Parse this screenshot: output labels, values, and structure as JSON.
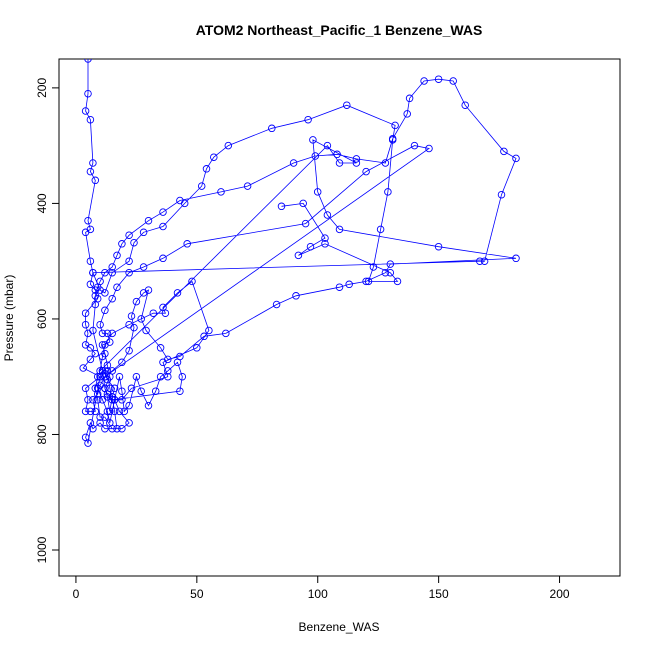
{
  "chart_data": {
    "type": "line",
    "title": "ATOM2 Northeast_Pacific_1 Benzene_WAS",
    "xlabel": "Benzene_WAS",
    "ylabel": "Pressure (mbar)",
    "xlim": [
      -7,
      225
    ],
    "ylim": [
      1045,
      150
    ],
    "y_reversed": true,
    "xticks": [
      0,
      50,
      100,
      150,
      200
    ],
    "yticks": [
      200,
      400,
      600,
      800,
      1000
    ],
    "grid": false,
    "legend": "none",
    "marker": "open-circle",
    "series": [
      {
        "color": "#0000ff",
        "points": [
          [
            5,
            150
          ],
          [
            5,
            210
          ],
          [
            4,
            240
          ],
          [
            6,
            255
          ],
          [
            7,
            330
          ],
          [
            6,
            345
          ],
          [
            8,
            360
          ],
          [
            5,
            430
          ],
          [
            6,
            445
          ],
          [
            4,
            450
          ],
          [
            6,
            500
          ],
          [
            7,
            520
          ],
          [
            6,
            540
          ],
          [
            8,
            550
          ],
          [
            9,
            565
          ],
          [
            4,
            590
          ],
          [
            4,
            610
          ],
          [
            5,
            625
          ],
          [
            4,
            645
          ],
          [
            6,
            650
          ],
          [
            8,
            660
          ],
          [
            6,
            670
          ],
          [
            3,
            685
          ],
          [
            10,
            700
          ],
          [
            4,
            720
          ],
          [
            5,
            740
          ],
          [
            4,
            760
          ],
          [
            6,
            760
          ],
          [
            8,
            760
          ],
          [
            7,
            740
          ],
          [
            9,
            730
          ],
          [
            10,
            715
          ],
          [
            12,
            700
          ],
          [
            13,
            690
          ],
          [
            14,
            720
          ],
          [
            15,
            735
          ],
          [
            16,
            760
          ],
          [
            17,
            790
          ],
          [
            12,
            790
          ],
          [
            10,
            780
          ],
          [
            7,
            790
          ],
          [
            6,
            780
          ],
          [
            4,
            805
          ],
          [
            5,
            815
          ],
          [
            10,
            700
          ],
          [
            9,
            720
          ],
          [
            11,
            740
          ],
          [
            13,
            760
          ],
          [
            14,
            780
          ],
          [
            16,
            740
          ],
          [
            18,
            700
          ],
          [
            19,
            725
          ],
          [
            20,
            760
          ],
          [
            22,
            750
          ],
          [
            25,
            700
          ],
          [
            27,
            725
          ],
          [
            30,
            750
          ],
          [
            33,
            725
          ],
          [
            35,
            700
          ],
          [
            38,
            690
          ],
          [
            42,
            675
          ],
          [
            44,
            700
          ],
          [
            43,
            725
          ],
          [
            15,
            740
          ],
          [
            13,
            730
          ],
          [
            12,
            720
          ],
          [
            14,
            700
          ],
          [
            13,
            680
          ],
          [
            12,
            660
          ],
          [
            11,
            645
          ],
          [
            14,
            640
          ],
          [
            13,
            625
          ],
          [
            11,
            625
          ],
          [
            10,
            610
          ],
          [
            12,
            585
          ],
          [
            15,
            565
          ],
          [
            17,
            545
          ],
          [
            22,
            520
          ],
          [
            28,
            510
          ],
          [
            36,
            495
          ],
          [
            46,
            470
          ],
          [
            95,
            435
          ],
          [
            120,
            345
          ],
          [
            140,
            300
          ],
          [
            146,
            305
          ],
          [
            12,
            700
          ],
          [
            15,
            690
          ],
          [
            19,
            675
          ],
          [
            22,
            655
          ],
          [
            24,
            615
          ],
          [
            23,
            595
          ],
          [
            25,
            570
          ],
          [
            28,
            555
          ],
          [
            30,
            550
          ],
          [
            27,
            600
          ],
          [
            29,
            620
          ],
          [
            35,
            650
          ],
          [
            38,
            670
          ],
          [
            43,
            665
          ],
          [
            53,
            630
          ],
          [
            62,
            625
          ],
          [
            83,
            575
          ],
          [
            91,
            560
          ],
          [
            109,
            545
          ],
          [
            113,
            540
          ],
          [
            120,
            535
          ],
          [
            128,
            520
          ],
          [
            130,
            505
          ],
          [
            182,
            495
          ],
          [
            150,
            475
          ],
          [
            109,
            445
          ],
          [
            104,
            420
          ],
          [
            100,
            380
          ],
          [
            98,
            290
          ],
          [
            116,
            330
          ],
          [
            109,
            330
          ],
          [
            104,
            300
          ],
          [
            10,
            690
          ],
          [
            11,
            665
          ],
          [
            12,
            645
          ],
          [
            15,
            625
          ],
          [
            22,
            610
          ],
          [
            32,
            590
          ],
          [
            37,
            590
          ],
          [
            36,
            580
          ],
          [
            42,
            555
          ],
          [
            48,
            535
          ],
          [
            55,
            620
          ],
          [
            50,
            650
          ],
          [
            36,
            675
          ],
          [
            38,
            700
          ],
          [
            23,
            720
          ],
          [
            19,
            740
          ],
          [
            16,
            740
          ],
          [
            18,
            760
          ],
          [
            22,
            780
          ],
          [
            19,
            790
          ],
          [
            15,
            790
          ],
          [
            12,
            770
          ],
          [
            10,
            770
          ],
          [
            9,
            740
          ],
          [
            8,
            720
          ],
          [
            9,
            700
          ],
          [
            11,
            690
          ],
          [
            12,
            720
          ],
          [
            13,
            735
          ],
          [
            14,
            760
          ],
          [
            15,
            735
          ],
          [
            16,
            720
          ],
          [
            13,
            705
          ],
          [
            12,
            695
          ],
          [
            11,
            690
          ],
          [
            7,
            620
          ],
          [
            8,
            575
          ],
          [
            8,
            560
          ],
          [
            9,
            545
          ],
          [
            10,
            535
          ],
          [
            12,
            520
          ],
          [
            15,
            510
          ],
          [
            17,
            490
          ],
          [
            19,
            470
          ],
          [
            22,
            455
          ],
          [
            30,
            430
          ],
          [
            36,
            415
          ],
          [
            43,
            395
          ],
          [
            60,
            380
          ],
          [
            71,
            370
          ],
          [
            90,
            330
          ],
          [
            99,
            318
          ],
          [
            108,
            315
          ],
          [
            116,
            323
          ],
          [
            128,
            330
          ],
          [
            131,
            288
          ],
          [
            137,
            245
          ],
          [
            138,
            218
          ],
          [
            144,
            188
          ],
          [
            150,
            185
          ],
          [
            156,
            188
          ],
          [
            161,
            230
          ],
          [
            177,
            310
          ],
          [
            182,
            322
          ],
          [
            176,
            385
          ],
          [
            169,
            500
          ],
          [
            167,
            500
          ],
          [
            7,
            520
          ],
          [
            10,
            550
          ],
          [
            12,
            555
          ],
          [
            15,
            520
          ],
          [
            22,
            500
          ],
          [
            24,
            468
          ],
          [
            28,
            450
          ],
          [
            36,
            440
          ],
          [
            45,
            400
          ],
          [
            52,
            370
          ],
          [
            54,
            340
          ],
          [
            57,
            320
          ],
          [
            63,
            300
          ],
          [
            81,
            270
          ],
          [
            96,
            255
          ],
          [
            112,
            230
          ],
          [
            132,
            265
          ],
          [
            131,
            290
          ],
          [
            129,
            380
          ],
          [
            126,
            445
          ],
          [
            123,
            510
          ],
          [
            121,
            535
          ],
          [
            133,
            535
          ],
          [
            130,
            520
          ],
          [
            103,
            470
          ],
          [
            92,
            490
          ],
          [
            97,
            475
          ],
          [
            103,
            460
          ],
          [
            94,
            400
          ],
          [
            85,
            405
          ]
        ]
      }
    ]
  }
}
